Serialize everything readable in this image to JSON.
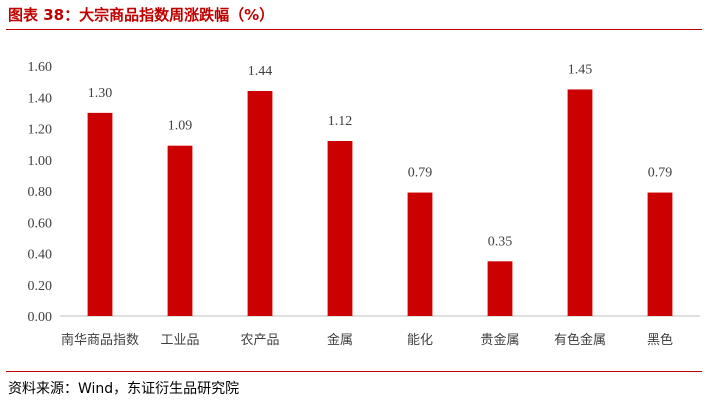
{
  "header": {
    "title": "图表 38：大宗商品指数周涨跌幅（%）"
  },
  "footer": {
    "source": "资料来源：Wind，东证衍生品研究院"
  },
  "colors": {
    "bar": "#cc0000",
    "title": "#c00000",
    "rule": "#c00000"
  },
  "chart_data": {
    "type": "bar",
    "title": "",
    "xlabel": "",
    "ylabel": "",
    "categories": [
      "南华商品指数",
      "工业品",
      "农产品",
      "金属",
      "能化",
      "贵金属",
      "有色金属",
      "黑色"
    ],
    "values": [
      1.3,
      1.09,
      1.44,
      1.12,
      0.79,
      0.35,
      1.45,
      0.79
    ],
    "value_labels": [
      "1.30",
      "1.09",
      "1.44",
      "1.12",
      "0.79",
      "0.35",
      "1.45",
      "0.79"
    ],
    "ylim": [
      0,
      1.6
    ],
    "yticks": [
      "0.00",
      "0.20",
      "0.40",
      "0.60",
      "0.80",
      "1.00",
      "1.20",
      "1.40",
      "1.60"
    ],
    "grid": false,
    "legend": "none"
  }
}
